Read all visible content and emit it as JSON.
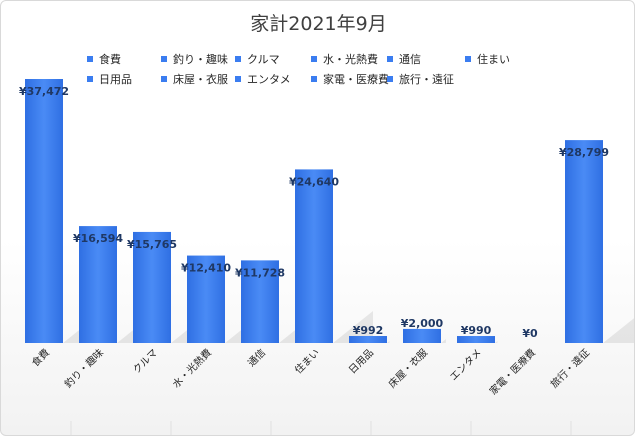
{
  "chart_data": {
    "type": "bar",
    "title": "家計2021年9月",
    "categories": [
      "食費",
      "釣り・趣味",
      "クルマ",
      "水・光熱費",
      "通信",
      "住まい",
      "日用品",
      "床屋・衣服",
      "エンタメ",
      "家電・医療費",
      "旅行・遠征"
    ],
    "values": [
      37472,
      16594,
      15765,
      12410,
      11728,
      24640,
      992,
      2000,
      990,
      0,
      28799
    ],
    "value_labels": [
      "¥37,472",
      "¥16,594",
      "¥15,765",
      "¥12,410",
      "¥11,728",
      "¥24,640",
      "¥992",
      "¥2,000",
      "¥990",
      "¥0",
      "¥28,799"
    ],
    "xlabel": "",
    "ylabel": "",
    "ylim": [
      0,
      40000
    ],
    "grid": false,
    "legend": "top",
    "bar_color": "#3b7df0"
  }
}
